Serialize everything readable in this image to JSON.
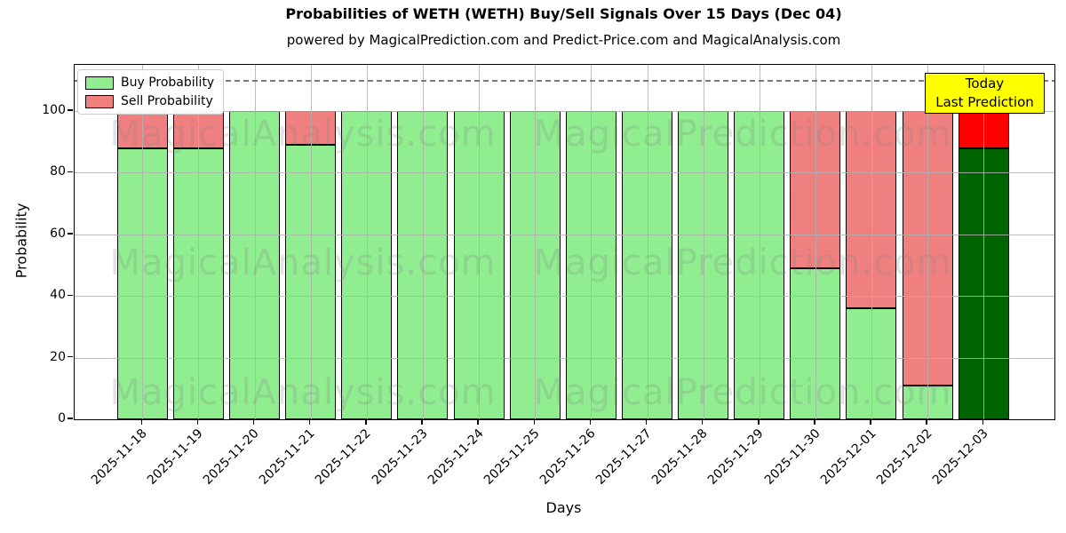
{
  "title": "Probabilities of WETH (WETH) Buy/Sell Signals Over 15 Days (Dec 04)",
  "subtitle": "powered by MagicalPrediction.com and Predict-Price.com and MagicalAnalysis.com",
  "annotation": {
    "line1": "Today",
    "line2": "Last Prediction",
    "bg_color": "#FFFF00"
  },
  "watermarks": {
    "left_text": "MagicalAnalysis.com",
    "right_text": "MagicalPrediction.com",
    "color": "rgba(128,128,128,0.22)"
  },
  "colors": {
    "grid": "rgba(176,176,176,0.85)",
    "dashed_line": "#7a7a7a",
    "bar_edge": "#000000",
    "spine": "#000000",
    "annotation_border": "#000000"
  },
  "chart_data": {
    "type": "bar",
    "stacked": true,
    "title": "Probabilities of WETH (WETH) Buy/Sell Signals Over 15 Days (Dec 04)",
    "xlabel": "Days",
    "ylabel": "Probability",
    "ylim": [
      0,
      115
    ],
    "yticks": [
      0,
      20,
      40,
      60,
      80,
      100
    ],
    "dashed_threshold_y": 110,
    "grid": true,
    "legend_position": "upper left",
    "categories": [
      "2025-11-18",
      "2025-11-19",
      "2025-11-20",
      "2025-11-21",
      "2025-11-22",
      "2025-11-23",
      "2025-11-24",
      "2025-11-25",
      "2025-11-26",
      "2025-11-27",
      "2025-11-28",
      "2025-11-29",
      "2025-11-30",
      "2025-12-01",
      "2025-12-02",
      "2025-12-03"
    ],
    "series": [
      {
        "name": "Buy Probability",
        "color": "#90EE90",
        "values": [
          88,
          88,
          100,
          89,
          100,
          100,
          100,
          100,
          100,
          100,
          100,
          100,
          49,
          36,
          11,
          88
        ]
      },
      {
        "name": "Sell Probability",
        "color": "#F08080",
        "values": [
          12,
          12,
          0,
          11,
          0,
          0,
          0,
          0,
          0,
          0,
          0,
          0,
          51,
          64,
          89,
          12
        ]
      }
    ],
    "today": {
      "index": 15,
      "category": "2025-12-03",
      "buy_color": "#006400",
      "sell_color": "#FF0000"
    }
  }
}
